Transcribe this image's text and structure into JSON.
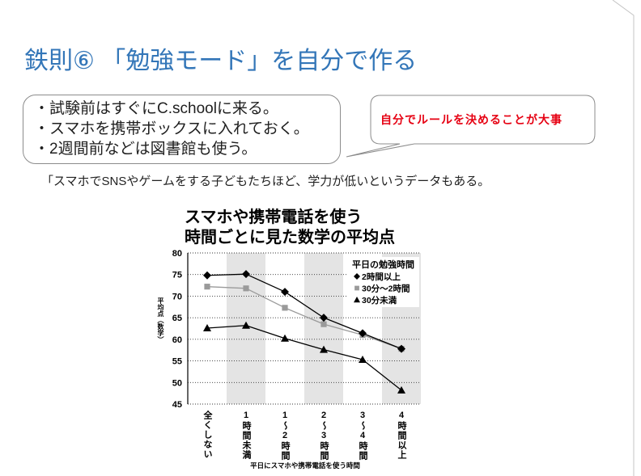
{
  "slide": {
    "title": "鉄則⑥ 「勉強モード」を自分で作る",
    "bullets": [
      "・試験前はすぐにC.schoolに来る。",
      "・スマホを携帯ボックスに入れておく。",
      "・2週間前などは図書館も使う。"
    ],
    "callout": "自分でルールを決めることが大事",
    "note": "「スマホでSNSやゲームをする子どもたちほど、学力が低いというデータもある。"
  },
  "colors": {
    "title": "#3376b8",
    "callout_text": "#e60012",
    "band": "#e4e4e4"
  },
  "chart_data": {
    "type": "line",
    "title_lines": [
      "スマホや携帯電話を使う",
      "時間ごとに見た数学の平均点"
    ],
    "categories": [
      "全くしない",
      "1時間未満",
      "1〜2時間",
      "2〜3時間",
      "3〜4時間",
      "4時間以上"
    ],
    "xlabel": "平日にスマホや携帯電話を使う時間",
    "ylabel": "平均点（数学）",
    "ylim": [
      45,
      80
    ],
    "yticks": [
      45,
      50,
      55,
      60,
      65,
      70,
      75,
      80
    ],
    "grid": true,
    "alternating_shaded_bands": true,
    "legend": {
      "title": "平日の勉強時間",
      "position": "top-right"
    },
    "series": [
      {
        "name": "2時間以上",
        "marker": "diamond",
        "color": "#000000",
        "values": [
          74.8,
          75.1,
          71.0,
          65.0,
          61.4,
          57.8
        ]
      },
      {
        "name": "30分〜2時間",
        "marker": "square",
        "color": "#9a9a9a",
        "values": [
          72.2,
          71.8,
          67.3,
          63.5,
          61.0,
          57.8
        ]
      },
      {
        "name": "30分未満",
        "marker": "triangle",
        "color": "#000000",
        "values": [
          62.6,
          63.2,
          60.2,
          57.6,
          55.3,
          48.2
        ]
      }
    ]
  }
}
